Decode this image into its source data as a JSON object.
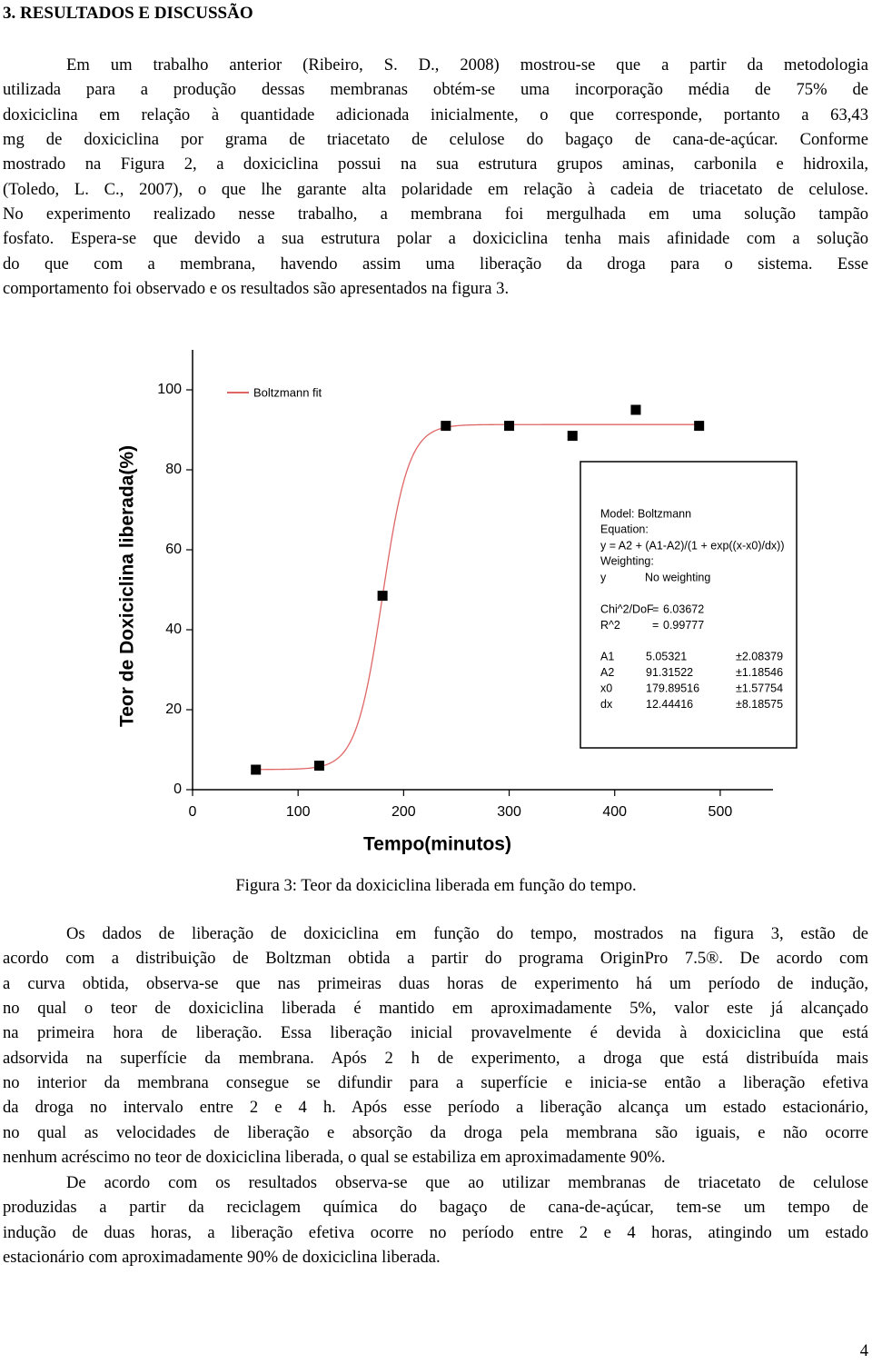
{
  "heading": "3. RESULTADOS E DISCUSSÃO",
  "paragraphs": [
    [
      "Em um trabalho anterior (Ribeiro, S. D., 2008) mostrou-se que a partir da metodologia",
      "utilizada para a produção dessas membranas obtém-se uma incorporação média de 75% de",
      "doxiciclina em relação à quantidade adicionada inicialmente, o que corresponde, portanto a 63,43",
      "mg de doxiciclina por grama de triacetato de celulose do bagaço de cana-de-açúcar. Conforme",
      "mostrado na Figura 2, a doxiciclina possui na sua estrutura grupos aminas, carbonila e hidroxila,",
      "(Toledo, L. C., 2007), o que lhe garante alta polaridade em relação à cadeia de triacetato de celulose.",
      "No experimento realizado nesse trabalho, a membrana foi mergulhada em uma solução tampão",
      "fosfato. Espera-se que devido a sua estrutura polar a doxiciclina tenha mais afinidade com a solução",
      "do que com a membrana, havendo assim uma liberação da droga para o sistema. Esse",
      "comportamento foi observado e os resultados são apresentados na figura 3."
    ],
    [
      "Os dados de liberação de doxiciclina em função do tempo, mostrados na figura 3, estão de",
      "acordo com a distribuição de Boltzman obtida a partir do programa OriginPro 7.5®. De acordo com",
      "a curva obtida, observa-se que nas primeiras duas horas de experimento há um período de indução,",
      "no qual o teor de doxiciclina liberada é mantido em aproximadamente 5%, valor este já alcançado",
      "na primeira hora de liberação. Essa liberação inicial provavelmente é devida à doxiciclina que está",
      "adsorvida na superfície da membrana. Após 2 h de experimento, a droga que está distribuída mais",
      "no interior da membrana consegue se difundir para a superfície e inicia-se então a liberação efetiva",
      "da droga no intervalo entre 2 e 4 h. Após esse período a liberação alcança um estado estacionário,",
      "no qual as velocidades de liberação e absorção da droga pela membrana são iguais, e não ocorre",
      "nenhum acréscimo no teor de doxiciclina liberada, o qual se estabiliza em aproximadamente 90%."
    ],
    [
      "De acordo com os resultados observa-se que ao utilizar membranas de triacetato de celulose",
      "produzidas a partir da reciclagem química do bagaço de cana-de-açúcar, tem-se um tempo de",
      "indução de duas horas, a liberação efetiva ocorre no período entre 2 e 4 horas, atingindo um estado",
      "estacionário com aproximadamente 90% de doxiciclina liberada."
    ]
  ],
  "chart_data": {
    "type": "scatter",
    "x_label": "Tempo(minutos)",
    "y_label": "Teor de Doxiciclina liberada(%)",
    "x": [
      60,
      120,
      180,
      240,
      300,
      360,
      420,
      480
    ],
    "values": [
      5,
      6,
      48.5,
      91,
      91,
      88.5,
      95,
      91
    ],
    "marker_color": "#000000",
    "xlim": [
      0,
      550
    ],
    "ylim": [
      0,
      110
    ],
    "xticks": [
      0,
      100,
      200,
      300,
      400,
      500
    ],
    "yticks": [
      0,
      20,
      40,
      60,
      80,
      100
    ],
    "grid": false,
    "fit": {
      "name": "Boltzmann fit",
      "color": "#e06666",
      "model": "Model: Boltzmann",
      "equation_label": "Equation:",
      "equation": "y = A2 + (A1-A2)/(1 + exp((x-x0)/dx))",
      "weighting_label": "Weighting:",
      "weighting": [
        "y",
        "No weighting"
      ],
      "stats": [
        {
          "label": "Chi^2/DoF",
          "sign": "=",
          "value": 6.03672
        },
        {
          "label": "R^2",
          "sign": "=",
          "value": 0.99777
        }
      ],
      "params": [
        {
          "name": "A1",
          "value": 5.05321,
          "error": "±2.08379"
        },
        {
          "name": "A2",
          "value": 91.31522,
          "error": "±1.18546"
        },
        {
          "name": "x0",
          "value": 179.89516,
          "error": "±1.57754"
        },
        {
          "name": "dx",
          "value": 12.44416,
          "error": "±8.18575"
        }
      ]
    }
  },
  "caption": "Figura 3: Teor da doxiciclina liberada em função do tempo.",
  "page_number": "4"
}
